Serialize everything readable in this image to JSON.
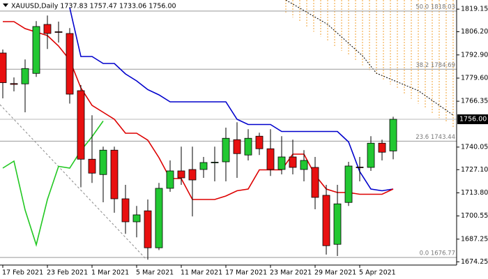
{
  "chart_data": {
    "type": "candlestick",
    "title": "XAUUSD,Daily  1737.83 1757.47 1733.06 1756.00",
    "categories": [
      "17 Feb 2021",
      null,
      null,
      null,
      "23 Feb 2021",
      null,
      null,
      null,
      "1 Mar 2021",
      null,
      null,
      null,
      "5 Mar 2021",
      null,
      null,
      null,
      "11 Mar 2021",
      null,
      null,
      null,
      "17 Mar 2021",
      null,
      null,
      null,
      "23 Mar 2021",
      null,
      null,
      null,
      "29 Mar 2021",
      null,
      null,
      null,
      "5 Apr 2021",
      null,
      null,
      null
    ],
    "open": [
      1794,
      1776.5,
      1776.3,
      1782.3,
      1810.4,
      1806.2,
      1805.2,
      1772.4,
      1733.1,
      1724.3,
      1738.3,
      1710.4,
      1697.2,
      1703.5,
      1682.3,
      1716.4,
      1726.4,
      1727.2,
      1727.2,
      1731.2,
      1731.6,
      1744.3,
      1735.5,
      1746.3,
      1739.1,
      1727.2,
      1734.4,
      1727.2,
      1728.4,
      1712.4,
      1684.3,
      1708.3,
      1728.6,
      1728.4,
      1742.3,
      1737.83
    ],
    "high": [
      1796,
      1780,
      1790.3,
      1812.3,
      1815.5,
      1812,
      1808.3,
      1775.6,
      1758.3,
      1740.3,
      1740.3,
      1718.4,
      1706.3,
      1710,
      1719.5,
      1732.4,
      1740.3,
      1740.3,
      1734.4,
      1740.3,
      1751.2,
      1754.3,
      1750.3,
      1748.3,
      1750.3,
      1746.3,
      1744.3,
      1738.3,
      1734.4,
      1718.4,
      1718.4,
      1731.6,
      1734.4,
      1746.3,
      1744.3,
      1757.47
    ],
    "low": [
      1768,
      1772,
      1760,
      1780.3,
      1796.3,
      1800,
      1765,
      1717,
      1719.5,
      1708.4,
      1702.4,
      1690.3,
      1688.3,
      1675.5,
      1681,
      1714.4,
      1718.4,
      1700.3,
      1722.4,
      1720.4,
      1720.4,
      1722.4,
      1732.4,
      1735.5,
      1723.5,
      1724.4,
      1724.4,
      1720.4,
      1704.4,
      1678.4,
      1677.6,
      1706.3,
      1720.4,
      1726.4,
      1732.4,
      1733.06
    ],
    "close": [
      1777,
      1776,
      1785.1,
      1809.2,
      1805.2,
      1806,
      1770.4,
      1733.1,
      1725.1,
      1738.3,
      1710.4,
      1697.2,
      1701.2,
      1682.3,
      1716.4,
      1726.4,
      1722.4,
      1721.2,
      1731.2,
      1731.4,
      1745.1,
      1736.3,
      1745.1,
      1739.1,
      1727.2,
      1734.4,
      1728.4,
      1732.4,
      1711.2,
      1683.5,
      1707.5,
      1729.2,
      1728.4,
      1742.3,
      1737.1,
      1756.0
    ],
    "up_color": "#22c832",
    "down_color": "#e81010",
    "lines": [
      {
        "color": "#0000cc",
        "values": [
          null,
          null,
          null,
          null,
          null,
          null,
          1820,
          1792,
          1792,
          1788,
          1788,
          1782,
          1778,
          1773,
          1770,
          1766,
          1766,
          1766,
          1766,
          1766,
          1766,
          1756,
          1753,
          1753,
          1753,
          1749,
          1749,
          1749,
          1749,
          1749,
          1749,
          1743,
          1726,
          1716,
          1715,
          1716
        ]
      },
      {
        "color": "#dd0000",
        "values": [
          1812,
          1812,
          1808,
          1806,
          1804,
          1798,
          1790,
          1774,
          1764,
          1760,
          1756,
          1748,
          1748,
          1744,
          1734,
          1722,
          1722,
          1710,
          1710,
          1710,
          1712,
          1715,
          1716,
          1727,
          1727,
          1727,
          1736,
          1736,
          1724,
          1716,
          1714,
          1714,
          1713,
          1713,
          1713,
          1716
        ]
      },
      {
        "color": "#22c822",
        "values": [
          1728,
          1732,
          1704,
          1684,
          1710,
          1729,
          1728,
          1738,
          1746,
          1755,
          null,
          null,
          null,
          null,
          null,
          null,
          null,
          null,
          null,
          null,
          null,
          null,
          null,
          null,
          null,
          null,
          null,
          null,
          null,
          null,
          null,
          null,
          null,
          null,
          null,
          null
        ]
      }
    ],
    "fib_levels": [
      {
        "label": "50.0 1818.03",
        "value": 1818.03
      },
      {
        "label": "38.2 1784.69",
        "value": 1784.69
      },
      {
        "label": "23.6 1743.44",
        "value": 1743.44
      },
      {
        "label": "0.0 1676.77",
        "value": 1676.77
      }
    ],
    "last_price_label": "1756.00",
    "ylim": [
      1672.4,
      1824.4
    ],
    "yticks": [
      1819.15,
      {
        "value": 1806.2,
        "label": "1806.20"
      },
      {
        "value": 1792.9,
        "label": "1792.90"
      },
      {
        "value": 1779.6,
        "label": "1779.60"
      },
      1766.35,
      1740.05,
      {
        "value": 1727.1,
        "label": "1727.10"
      },
      {
        "value": 1713.8,
        "label": "1713.80"
      },
      1700.55,
      1687.25,
      1674.25
    ]
  }
}
